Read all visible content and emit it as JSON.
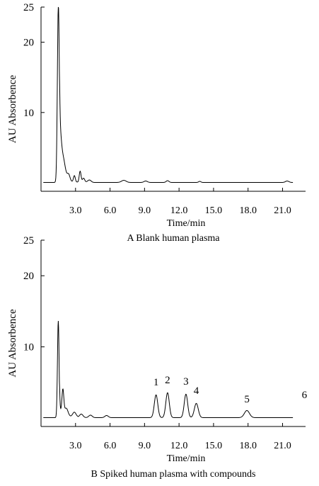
{
  "chart_data": [
    {
      "type": "line",
      "caption": "A Blank human plasma",
      "xlabel": "Time/min",
      "ylabel": "AU Absorbence",
      "xlim": [
        0,
        23
      ],
      "ylim": [
        0,
        25
      ],
      "xticks": [
        3,
        6,
        9,
        12,
        15,
        18,
        21
      ],
      "xtick_labels": [
        "3.0",
        "6.0",
        "9.0",
        "12.0",
        "15.0",
        "18.0",
        "21.0"
      ],
      "yticks": [
        10,
        20,
        25
      ],
      "ytick_labels": [
        "10",
        "20",
        "25"
      ],
      "grid": false,
      "baseline": 0.05,
      "peaks": [
        {
          "t": 1.5,
          "h": 22.8,
          "w": 0.08
        },
        {
          "t": 1.65,
          "h": 4.5,
          "w": 0.12
        },
        {
          "t": 1.9,
          "h": 3.0,
          "w": 0.2
        },
        {
          "t": 2.4,
          "h": 0.9,
          "w": 0.12
        },
        {
          "t": 2.9,
          "h": 0.9,
          "w": 0.08
        },
        {
          "t": 3.4,
          "h": 1.6,
          "w": 0.08
        },
        {
          "t": 3.7,
          "h": 0.6,
          "w": 0.1
        },
        {
          "t": 4.2,
          "h": 0.35,
          "w": 0.15
        },
        {
          "t": 7.2,
          "h": 0.3,
          "w": 0.2
        },
        {
          "t": 9.1,
          "h": 0.2,
          "w": 0.15
        },
        {
          "t": 11.0,
          "h": 0.25,
          "w": 0.12
        },
        {
          "t": 13.8,
          "h": 0.15,
          "w": 0.1
        },
        {
          "t": 21.4,
          "h": 0.2,
          "w": 0.15
        }
      ],
      "peak_labels": []
    },
    {
      "type": "line",
      "caption": "B Spiked human plasma with compounds",
      "xlabel": "Time/min",
      "ylabel": "AU Absorbence",
      "xlim": [
        0,
        23
      ],
      "ylim": [
        0,
        25
      ],
      "xticks": [
        3,
        6,
        9,
        12,
        15,
        18,
        21
      ],
      "xtick_labels": [
        "3.0",
        "6.0",
        "9.0",
        "12.0",
        "15.0",
        "18.0",
        "21.0"
      ],
      "yticks": [
        10,
        20,
        25
      ],
      "ytick_labels": [
        "10",
        "20",
        "25"
      ],
      "grid": false,
      "baseline": 0.05,
      "peaks": [
        {
          "t": 1.5,
          "h": 13.6,
          "w": 0.07
        },
        {
          "t": 1.9,
          "h": 3.3,
          "w": 0.08
        },
        {
          "t": 2.2,
          "h": 1.0,
          "w": 0.15
        },
        {
          "t": 2.9,
          "h": 0.7,
          "w": 0.15
        },
        {
          "t": 3.5,
          "h": 0.5,
          "w": 0.15
        },
        {
          "t": 4.3,
          "h": 0.35,
          "w": 0.15
        },
        {
          "t": 5.7,
          "h": 0.3,
          "w": 0.15
        },
        {
          "t": 10.0,
          "h": 3.2,
          "w": 0.15
        },
        {
          "t": 11.0,
          "h": 3.5,
          "w": 0.15
        },
        {
          "t": 12.6,
          "h": 3.3,
          "w": 0.15
        },
        {
          "t": 13.5,
          "h": 2.0,
          "w": 0.17
        },
        {
          "t": 17.9,
          "h": 1.0,
          "w": 0.22
        },
        {
          "t": 22.9,
          "h": 1.5,
          "w": 0.25
        }
      ],
      "peak_labels": [
        {
          "label": "1",
          "t": 10.0,
          "y": 4.0
        },
        {
          "label": "2",
          "t": 11.0,
          "y": 4.3
        },
        {
          "label": "3",
          "t": 12.6,
          "y": 4.1
        },
        {
          "label": "4",
          "t": 13.5,
          "y": 2.8
        },
        {
          "label": "5",
          "t": 17.9,
          "y": 1.6
        },
        {
          "label": "6",
          "t": 22.9,
          "y": 2.2
        }
      ]
    }
  ]
}
